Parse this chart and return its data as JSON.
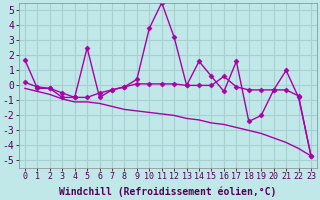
{
  "title": "",
  "xlabel": "Windchill (Refroidissement éolien,°C)",
  "ylabel": "",
  "background_color": "#c0e8e8",
  "grid_color": "#a8d0d0",
  "line_color": "#aa00aa",
  "xlim": [
    -0.5,
    23.5
  ],
  "ylim": [
    -5.5,
    5.5
  ],
  "yticks": [
    -5,
    -4,
    -3,
    -2,
    -1,
    0,
    1,
    2,
    3,
    4,
    5
  ],
  "xticks": [
    0,
    1,
    2,
    3,
    4,
    5,
    6,
    7,
    8,
    9,
    10,
    11,
    12,
    13,
    14,
    15,
    16,
    17,
    18,
    19,
    20,
    21,
    22,
    23
  ],
  "line1_x": [
    0,
    1,
    2,
    3,
    4,
    5,
    6,
    7,
    8,
    9,
    10,
    11,
    12,
    13,
    14,
    15,
    16,
    17,
    18,
    19,
    20,
    21,
    22,
    23
  ],
  "line1_y": [
    1.7,
    -0.2,
    -0.2,
    -0.8,
    -0.8,
    2.5,
    -0.8,
    -0.3,
    -0.1,
    0.4,
    3.8,
    5.5,
    3.2,
    0.0,
    1.6,
    0.6,
    -0.4,
    1.6,
    -2.4,
    -2.0,
    -0.3,
    1.0,
    -0.8,
    -4.7
  ],
  "line2_x": [
    0,
    1,
    2,
    3,
    4,
    5,
    6,
    7,
    8,
    9,
    10,
    11,
    12,
    13,
    14,
    15,
    16,
    17,
    18,
    19,
    20,
    21,
    22,
    23
  ],
  "line2_y": [
    0.2,
    -0.1,
    -0.2,
    -0.5,
    -0.8,
    -0.8,
    -0.5,
    -0.3,
    -0.1,
    0.1,
    0.1,
    0.1,
    0.1,
    0.0,
    0.0,
    0.0,
    0.6,
    -0.1,
    -0.3,
    -0.3,
    -0.3,
    -0.3,
    -0.7,
    -4.7
  ],
  "line3_x": [
    0,
    1,
    2,
    3,
    4,
    5,
    6,
    7,
    8,
    9,
    10,
    11,
    12,
    13,
    14,
    15,
    16,
    17,
    18,
    19,
    20,
    21,
    22,
    23
  ],
  "line3_y": [
    -0.2,
    -0.4,
    -0.6,
    -0.9,
    -1.1,
    -1.1,
    -1.2,
    -1.4,
    -1.6,
    -1.7,
    -1.8,
    -1.9,
    -2.0,
    -2.2,
    -2.3,
    -2.5,
    -2.6,
    -2.8,
    -3.0,
    -3.2,
    -3.5,
    -3.8,
    -4.2,
    -4.7
  ],
  "font_size_xlabel": 7,
  "font_size_ytick": 7,
  "font_size_xtick": 6,
  "marker": "D",
  "marker_size": 2.5,
  "line_width": 1.0
}
